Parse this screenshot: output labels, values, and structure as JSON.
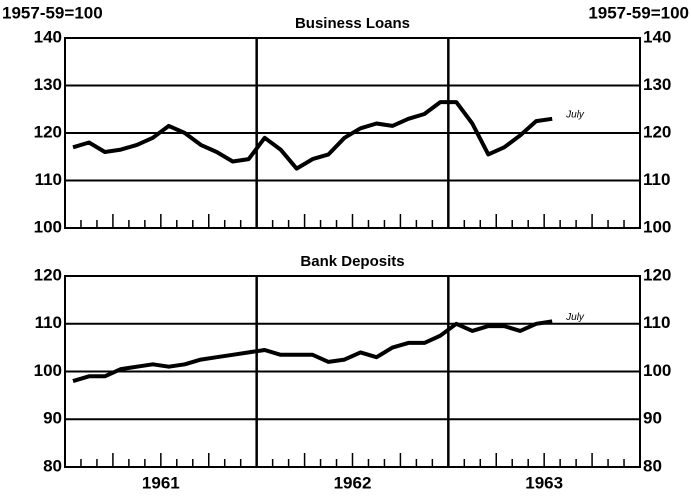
{
  "chart_data": [
    {
      "type": "line",
      "title": "Business Loans",
      "ylabel": "1957-59=100",
      "y2label": "1957-59=100",
      "years": [
        "1961",
        "1962",
        "1963"
      ],
      "series": [
        {
          "name": "Business Loans",
          "color": "#000000",
          "values": [
            117,
            118,
            116,
            116.5,
            117.5,
            119,
            121.5,
            120,
            117.5,
            116,
            114,
            114.5,
            119,
            116.5,
            112.5,
            114.5,
            115.5,
            119,
            121,
            122,
            121.5,
            123,
            124,
            126.5,
            126.5,
            122,
            115.5,
            117,
            119.5,
            122.5,
            123,
            null,
            null,
            null,
            null,
            null
          ]
        }
      ],
      "annotation": "July",
      "ylim": [
        100,
        140
      ],
      "yticks": [
        100,
        110,
        120,
        130,
        140
      ],
      "y2lim": [
        100,
        140
      ],
      "y2ticks": [
        100,
        110,
        120,
        130,
        140
      ],
      "grid": true
    },
    {
      "type": "line",
      "title": "Bank Deposits",
      "years": [
        "1961",
        "1962",
        "1963"
      ],
      "series": [
        {
          "name": "Bank Deposits",
          "color": "#000000",
          "values": [
            98,
            99,
            99,
            100.5,
            101,
            101.5,
            101,
            101.5,
            102.5,
            103,
            103.5,
            104,
            104.5,
            103.5,
            103.5,
            103.5,
            102,
            102.5,
            104,
            103,
            105,
            106,
            106,
            107.5,
            110,
            108.5,
            109.5,
            109.5,
            108.5,
            110,
            110.5,
            null,
            null,
            null,
            null,
            null
          ]
        }
      ],
      "annotation": "July",
      "ylim": [
        80,
        120
      ],
      "yticks": [
        80,
        90,
        100,
        110,
        120
      ],
      "y2lim": [
        80,
        120
      ],
      "y2ticks": [
        80,
        90,
        100,
        110,
        120
      ],
      "grid": true
    }
  ]
}
